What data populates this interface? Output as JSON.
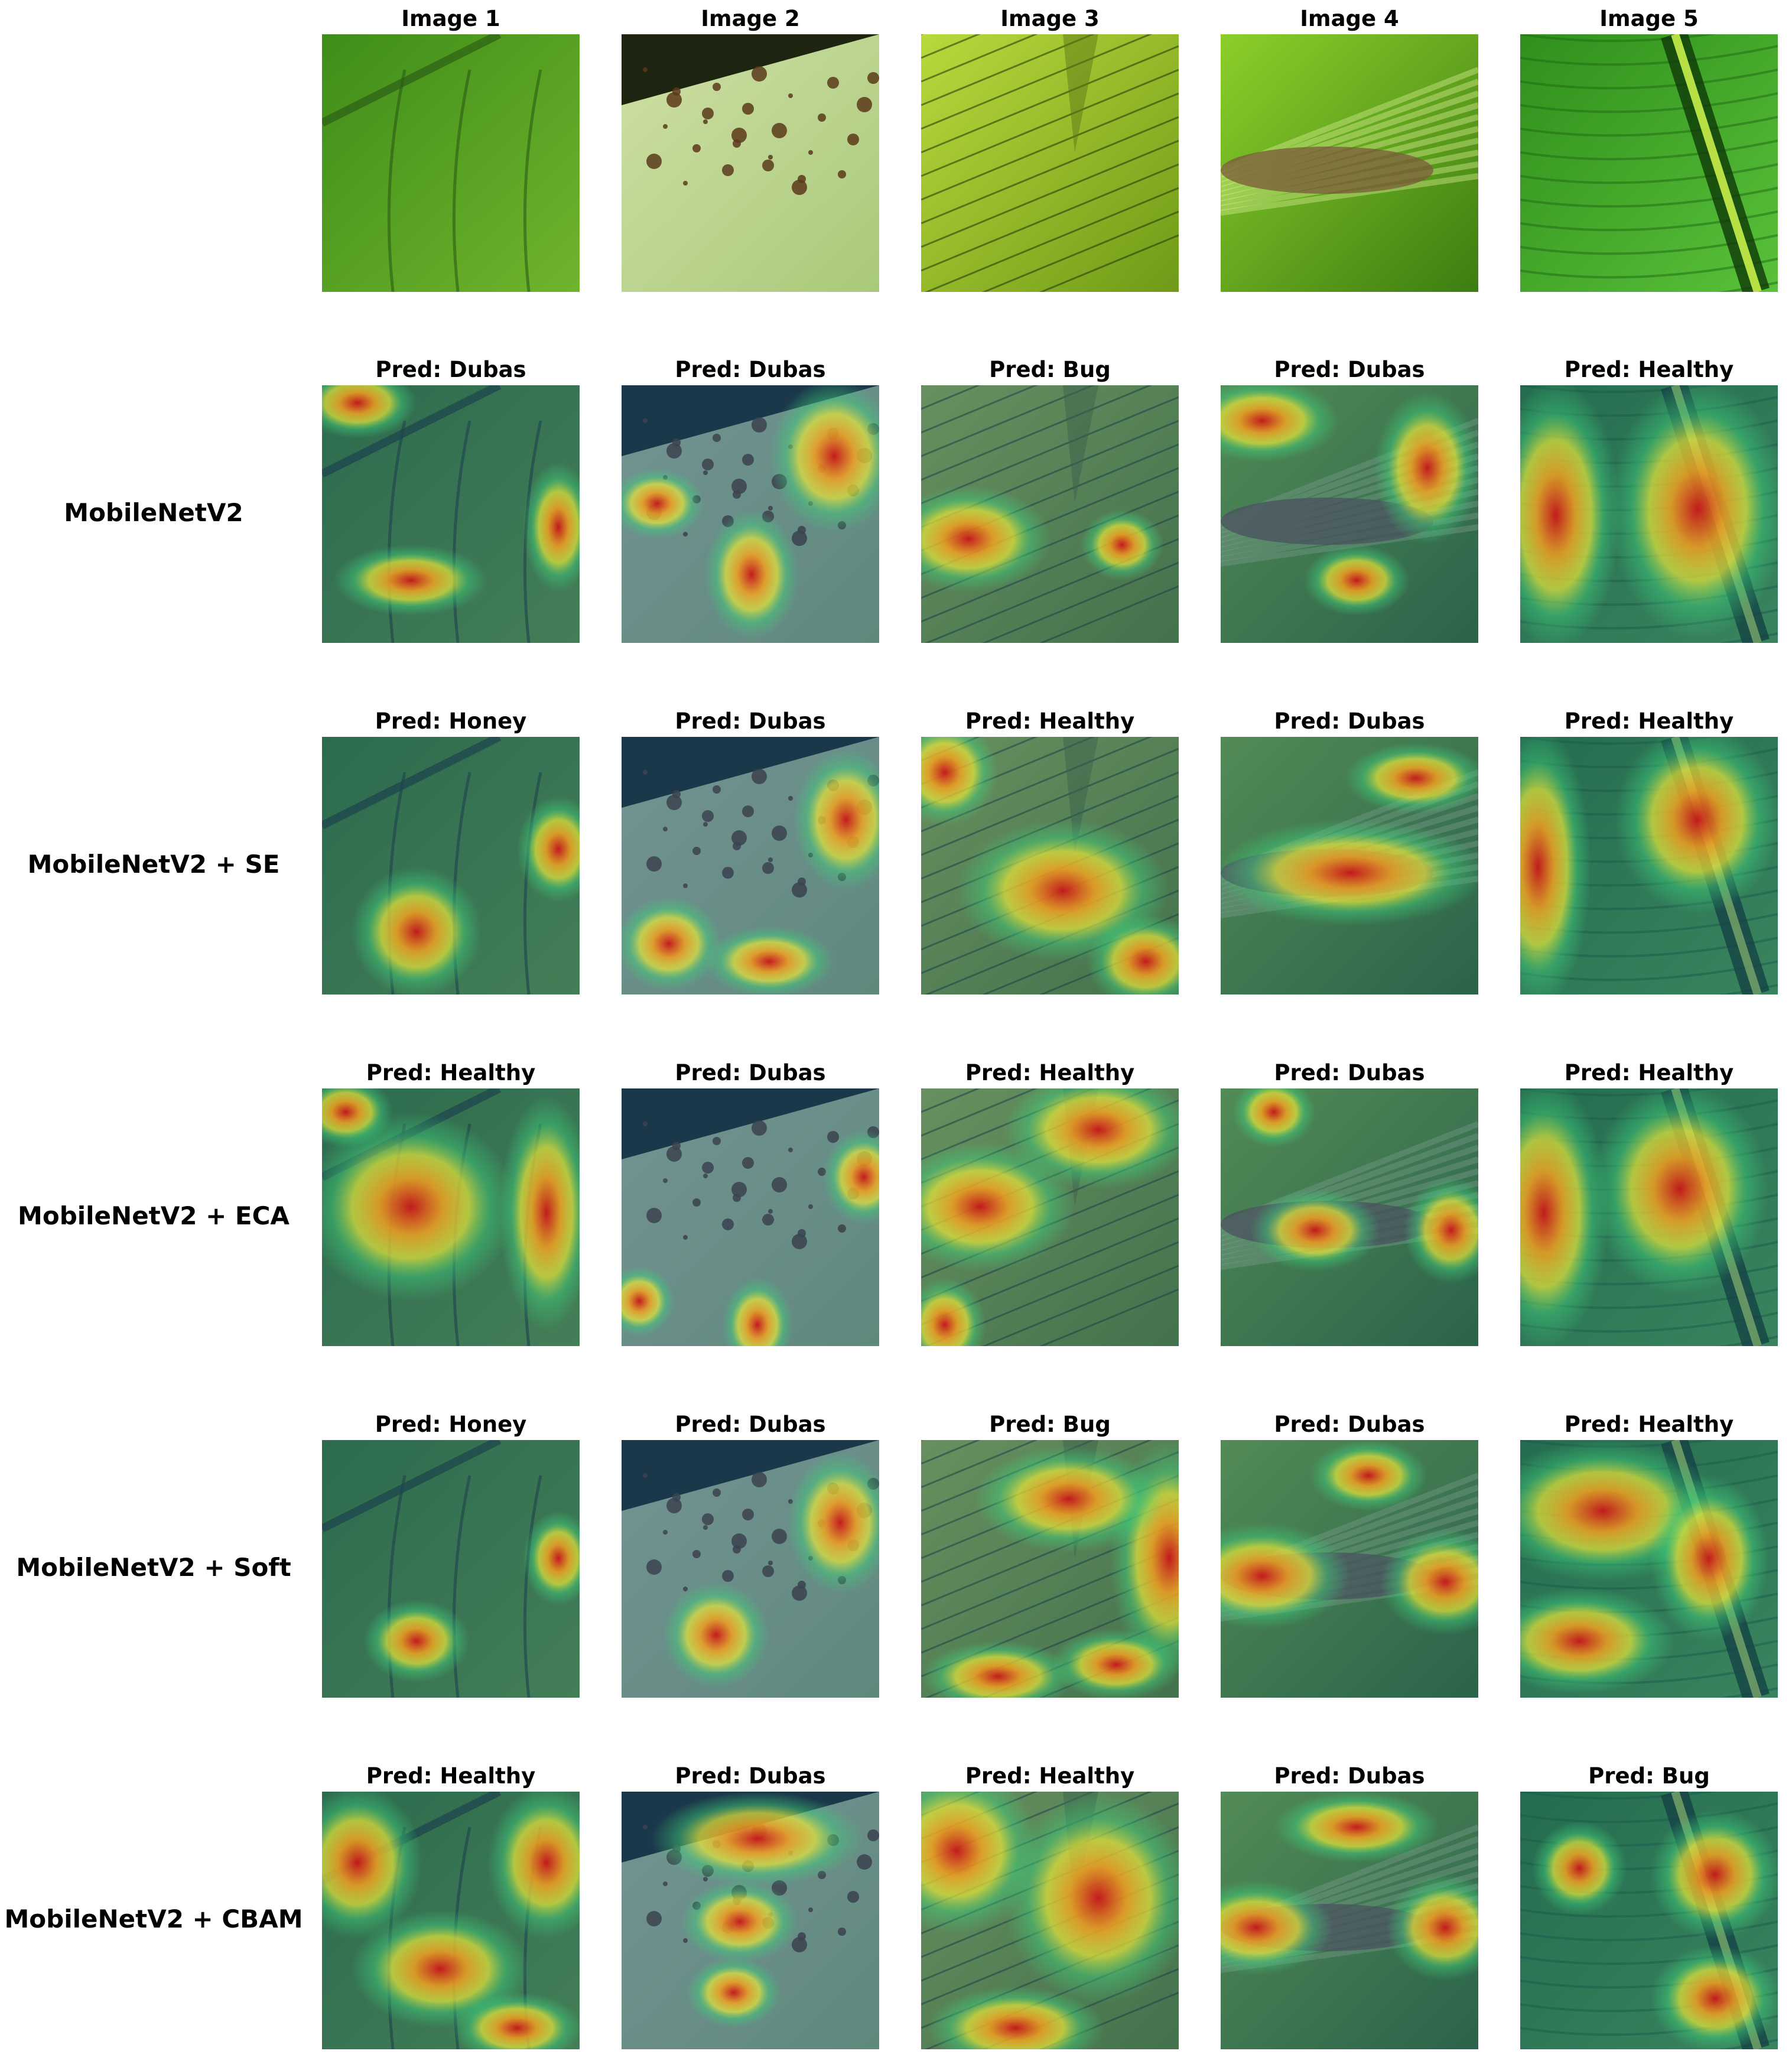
{
  "columns": [
    "Image 1",
    "Image 2",
    "Image 3",
    "Image 4",
    "Image 5"
  ],
  "rows": [
    {
      "label": "MobileNetV2",
      "preds": [
        "Pred: Dubas",
        "Pred: Dubas",
        "Pred: Bug",
        "Pred: Dubas",
        "Pred: Healthy"
      ]
    },
    {
      "label": "MobileNetV2 + SE",
      "preds": [
        "Pred: Honey",
        "Pred: Dubas",
        "Pred: Healthy",
        "Pred: Dubas",
        "Pred: Healthy"
      ]
    },
    {
      "label": "MobileNetV2 + ECA",
      "preds": [
        "Pred: Healthy",
        "Pred: Dubas",
        "Pred: Healthy",
        "Pred: Dubas",
        "Pred: Healthy"
      ]
    },
    {
      "label": "MobileNetV2 + Soft",
      "preds": [
        "Pred: Honey",
        "Pred: Dubas",
        "Pred: Bug",
        "Pred: Dubas",
        "Pred: Healthy"
      ]
    },
    {
      "label": "MobileNetV2 + CBAM",
      "preds": [
        "Pred: Healthy",
        "Pred: Dubas",
        "Pred: Healthy",
        "Pred: Dubas",
        "Pred: Bug"
      ]
    }
  ],
  "image_descriptions": [
    "green-leaf-veins",
    "leaf-with-scale-insects",
    "backlit-palm-leaf",
    "palm-flower-stalk",
    "leaf-with-midrib"
  ],
  "colors": {
    "leaf_green": "#4e9a1c",
    "heatmap_low": "#1c2a8c",
    "heatmap_mid": "#3fd07a",
    "heatmap_high": "#d8321a"
  }
}
